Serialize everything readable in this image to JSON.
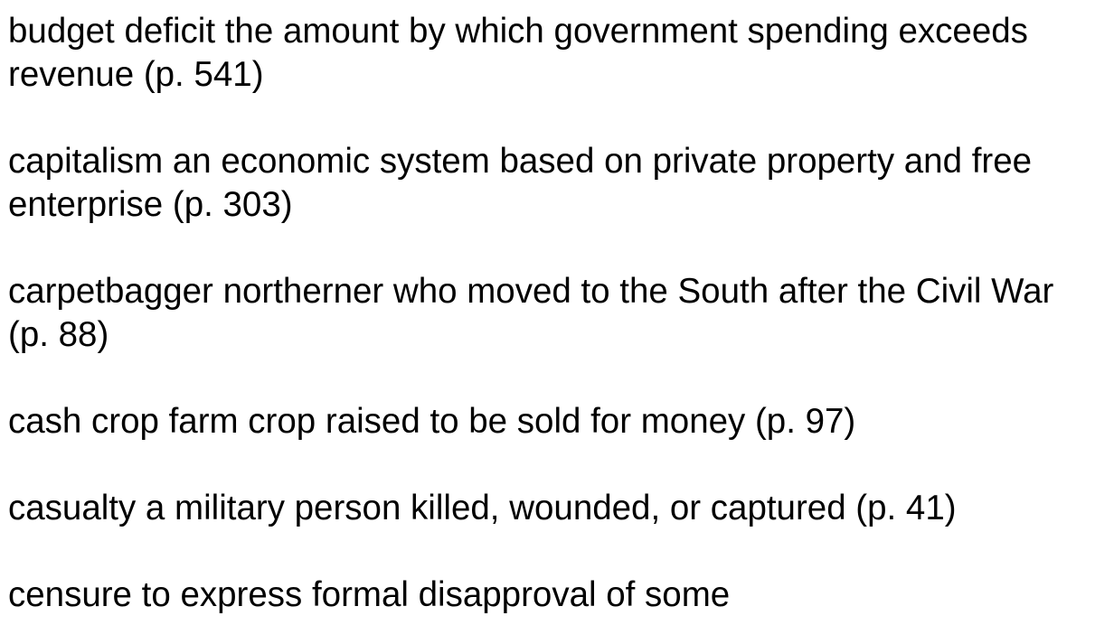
{
  "glossary": {
    "entries": [
      {
        "line1": "budget deficit the amount by which government spending exceeds",
        "line2": "revenue (p. 541)"
      },
      {
        "line1": "capitalism an economic system based on private property and free",
        "line2": "enterprise (p. 303)"
      },
      {
        "line1": "carpetbagger northerner who moved to the South after the Civil War",
        "line2": "(p. 88)"
      },
      {
        "line1": "cash crop farm crop raised to be sold for money (p. 97)"
      },
      {
        "line1": "casualty a military person killed, wounded, or captured (p. 41)"
      },
      {
        "line1": "censure to express formal disapproval of some"
      }
    ]
  }
}
